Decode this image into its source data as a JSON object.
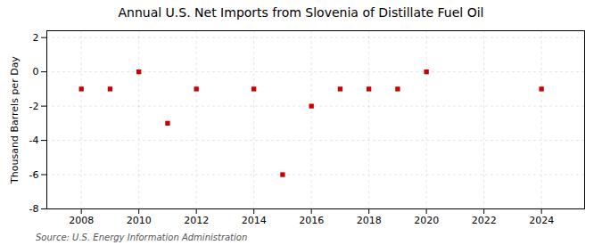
{
  "chart_data": {
    "type": "scatter",
    "title": "Annual U.S. Net Imports from Slovenia of Distillate Fuel Oil",
    "ylabel": "Thousand Barrels per Day",
    "source": "Source: U.S. Energy Information Administration",
    "x": [
      2008,
      2009,
      2010,
      2011,
      2012,
      2014,
      2015,
      2016,
      2017,
      2018,
      2019,
      2020,
      2024
    ],
    "values": [
      -1.0,
      -1.0,
      0.0,
      -3.0,
      -1.0,
      -1.0,
      -6.0,
      -2.0,
      -1.0,
      -1.0,
      -1.0,
      0.0,
      -1.0
    ],
    "color": "#cc0000",
    "marker": "square",
    "xlim": [
      2006.8,
      2025.5
    ],
    "ylim": [
      -8,
      2.4
    ],
    "xticks": [
      2008,
      2010,
      2012,
      2014,
      2016,
      2018,
      2020,
      2022,
      2024
    ],
    "yticks": [
      -8,
      -6,
      -4,
      -2,
      0,
      2
    ],
    "grid": true
  }
}
